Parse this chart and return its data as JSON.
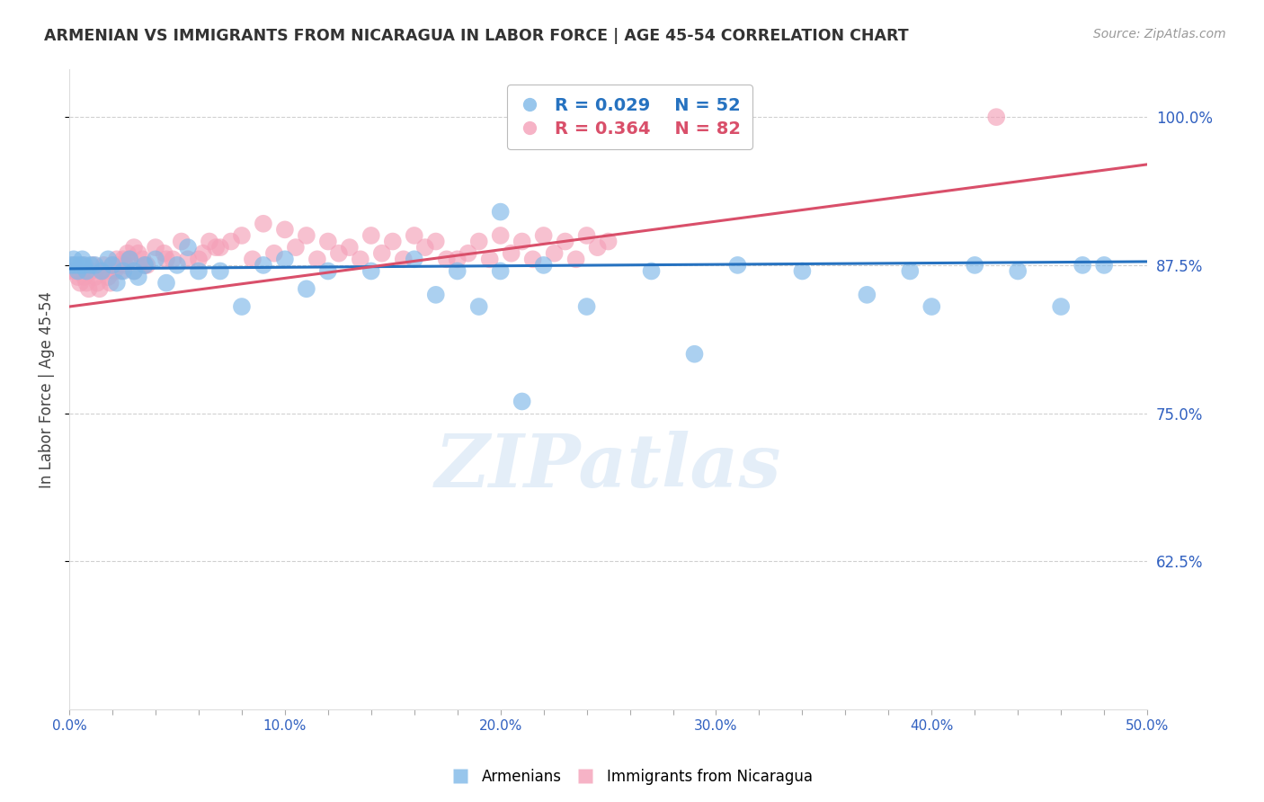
{
  "title": "ARMENIAN VS IMMIGRANTS FROM NICARAGUA IN LABOR FORCE | AGE 45-54 CORRELATION CHART",
  "source": "Source: ZipAtlas.com",
  "ylabel": "In Labor Force | Age 45-54",
  "xlim": [
    0.0,
    0.5
  ],
  "ylim": [
    0.5,
    1.04
  ],
  "ytick_labels": [
    "62.5%",
    "75.0%",
    "87.5%",
    "100.0%"
  ],
  "xtick_labels": [
    "0.0%",
    "",
    "",
    "",
    "",
    "10.0%",
    "",
    "",
    "",
    "",
    "20.0%",
    "",
    "",
    "",
    "",
    "30.0%",
    "",
    "",
    "",
    "",
    "40.0%",
    "",
    "",
    "",
    "",
    "50.0%"
  ],
  "blue_color": "#7eb8e8",
  "pink_color": "#f4a0b8",
  "blue_line_color": "#2672c0",
  "pink_line_color": "#d94f6a",
  "axis_color": "#3060c0",
  "grid_color": "#d0d0d0",
  "legend_label_blue": "Armenians",
  "legend_label_pink": "Immigrants from Nicaragua",
  "watermark": "ZIPatlas",
  "blue_x": [
    0.001,
    0.002,
    0.003,
    0.004,
    0.005,
    0.006,
    0.007,
    0.008,
    0.01,
    0.012,
    0.015,
    0.018,
    0.02,
    0.022,
    0.025,
    0.028,
    0.03,
    0.032,
    0.035,
    0.04,
    0.045,
    0.05,
    0.055,
    0.06,
    0.07,
    0.08,
    0.09,
    0.1,
    0.11,
    0.12,
    0.14,
    0.16,
    0.17,
    0.18,
    0.19,
    0.2,
    0.22,
    0.24,
    0.27,
    0.29,
    0.31,
    0.34,
    0.37,
    0.39,
    0.4,
    0.42,
    0.44,
    0.46,
    0.47,
    0.48,
    0.2,
    0.21
  ],
  "blue_y": [
    0.875,
    0.88,
    0.875,
    0.87,
    0.875,
    0.88,
    0.875,
    0.87,
    0.875,
    0.875,
    0.87,
    0.88,
    0.875,
    0.86,
    0.87,
    0.88,
    0.87,
    0.865,
    0.875,
    0.88,
    0.86,
    0.875,
    0.89,
    0.87,
    0.87,
    0.84,
    0.875,
    0.88,
    0.855,
    0.87,
    0.87,
    0.88,
    0.85,
    0.87,
    0.84,
    0.87,
    0.875,
    0.84,
    0.87,
    0.8,
    0.875,
    0.87,
    0.85,
    0.87,
    0.84,
    0.875,
    0.87,
    0.84,
    0.875,
    0.875,
    0.92,
    0.76
  ],
  "pink_x": [
    0.001,
    0.002,
    0.003,
    0.004,
    0.005,
    0.006,
    0.007,
    0.008,
    0.009,
    0.01,
    0.011,
    0.012,
    0.013,
    0.014,
    0.015,
    0.016,
    0.017,
    0.018,
    0.019,
    0.02,
    0.021,
    0.022,
    0.023,
    0.024,
    0.025,
    0.026,
    0.027,
    0.028,
    0.03,
    0.032,
    0.034,
    0.036,
    0.04,
    0.044,
    0.048,
    0.052,
    0.06,
    0.065,
    0.07,
    0.075,
    0.08,
    0.09,
    0.1,
    0.11,
    0.12,
    0.13,
    0.14,
    0.15,
    0.16,
    0.17,
    0.18,
    0.19,
    0.2,
    0.21,
    0.22,
    0.23,
    0.24,
    0.25,
    0.03,
    0.035,
    0.045,
    0.055,
    0.062,
    0.068,
    0.085,
    0.095,
    0.105,
    0.115,
    0.125,
    0.135,
    0.145,
    0.155,
    0.165,
    0.175,
    0.185,
    0.195,
    0.205,
    0.215,
    0.225,
    0.235,
    0.43,
    0.245
  ],
  "pink_y": [
    0.87,
    0.875,
    0.87,
    0.865,
    0.86,
    0.875,
    0.865,
    0.86,
    0.855,
    0.87,
    0.875,
    0.865,
    0.86,
    0.855,
    0.87,
    0.875,
    0.87,
    0.865,
    0.86,
    0.875,
    0.87,
    0.88,
    0.875,
    0.87,
    0.88,
    0.875,
    0.885,
    0.88,
    0.89,
    0.885,
    0.88,
    0.875,
    0.89,
    0.885,
    0.88,
    0.895,
    0.88,
    0.895,
    0.89,
    0.895,
    0.9,
    0.91,
    0.905,
    0.9,
    0.895,
    0.89,
    0.9,
    0.895,
    0.9,
    0.895,
    0.88,
    0.895,
    0.9,
    0.895,
    0.9,
    0.895,
    0.9,
    0.895,
    0.87,
    0.875,
    0.88,
    0.88,
    0.885,
    0.89,
    0.88,
    0.885,
    0.89,
    0.88,
    0.885,
    0.88,
    0.885,
    0.88,
    0.89,
    0.88,
    0.885,
    0.88,
    0.885,
    0.88,
    0.885,
    0.88,
    1.0,
    0.89
  ],
  "blue_line_x": [
    0.0,
    0.5
  ],
  "blue_line_y": [
    0.872,
    0.878
  ],
  "pink_line_x": [
    0.0,
    0.5
  ],
  "pink_line_y": [
    0.84,
    0.96
  ]
}
